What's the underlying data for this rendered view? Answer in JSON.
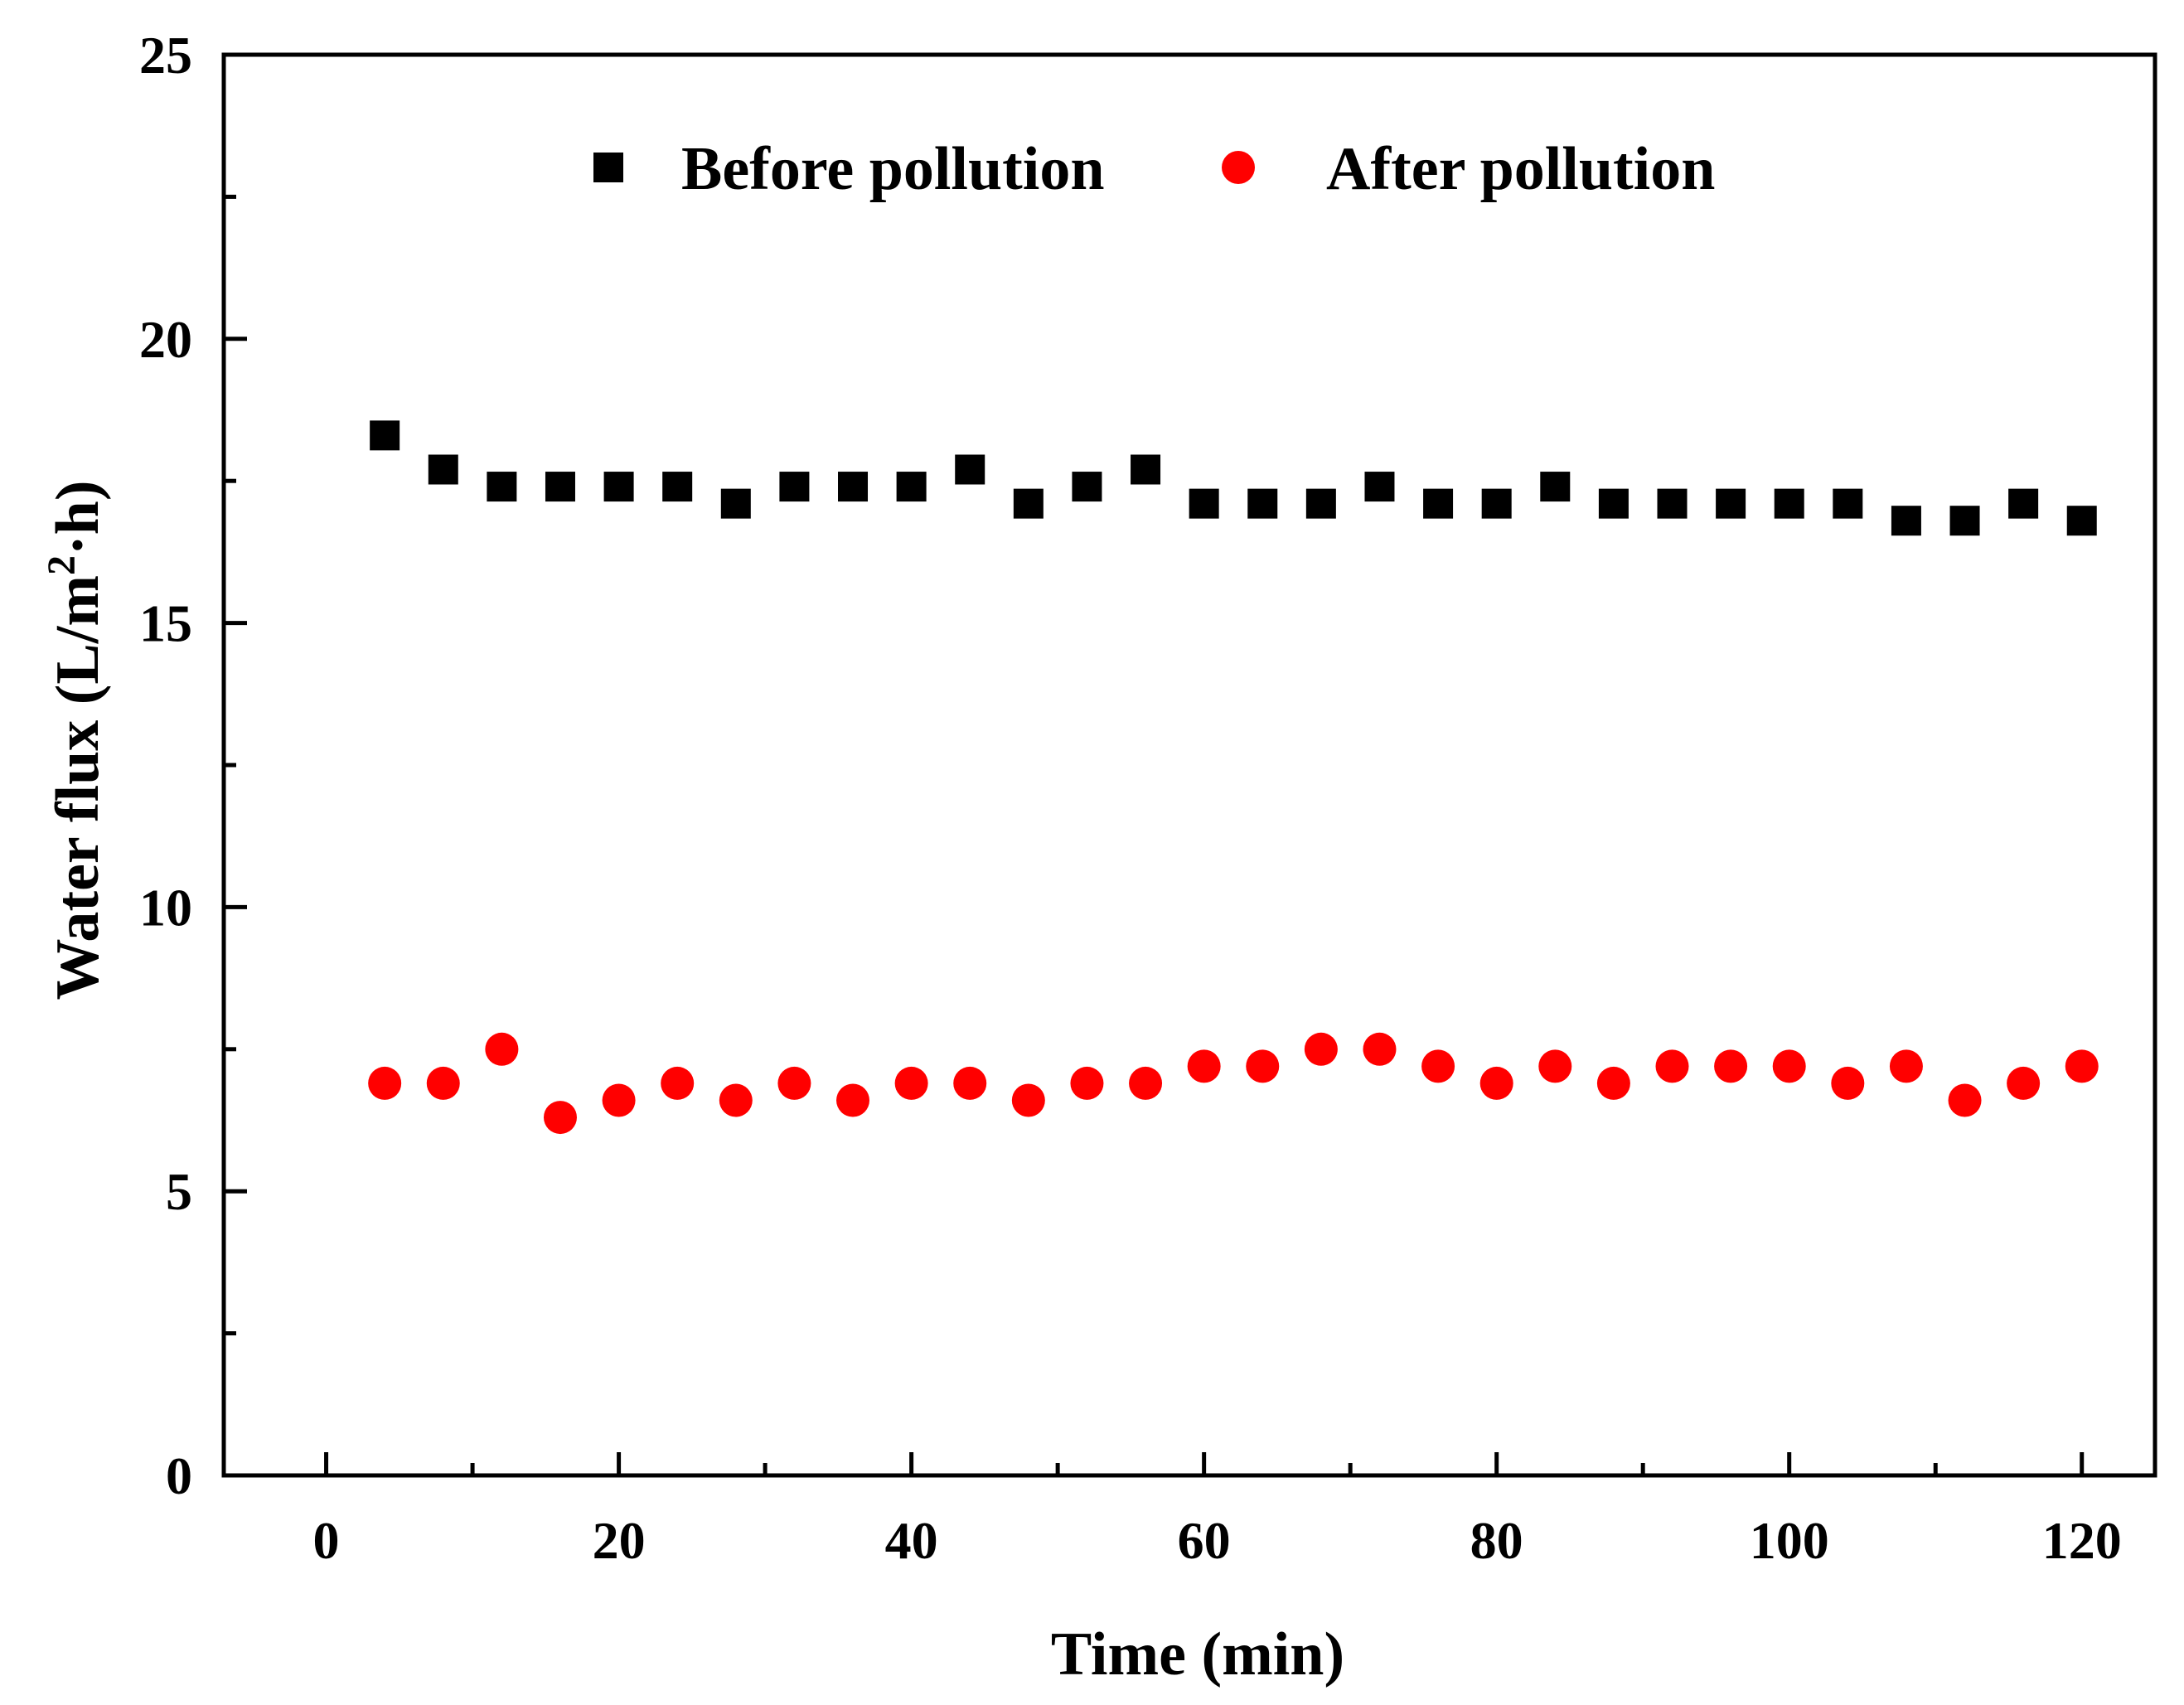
{
  "chart_data": {
    "type": "scatter",
    "xlabel": "Time (min)",
    "ylabel_prefix": "Water flux (L/m",
    "ylabel_sup": "2",
    "ylabel_suffix": "·h)",
    "xlim": [
      -7,
      125
    ],
    "ylim": [
      0,
      25
    ],
    "xticks": [
      0,
      20,
      40,
      60,
      80,
      100,
      120
    ],
    "xticks_minor": [
      10,
      30,
      50,
      70,
      90,
      110
    ],
    "yticks": [
      0,
      5,
      10,
      15,
      20,
      25
    ],
    "yticks_minor": [
      2.5,
      7.5,
      12.5,
      17.5,
      22.5
    ],
    "grid": false,
    "legend_position": "top-center",
    "x": [
      4,
      8,
      12,
      16,
      20,
      24,
      28,
      32,
      36,
      40,
      44,
      48,
      52,
      56,
      60,
      64,
      68,
      72,
      76,
      80,
      84,
      88,
      92,
      96,
      100,
      104,
      108,
      112,
      116,
      120
    ],
    "series": [
      {
        "name": "Before pollution",
        "marker": "square",
        "color": "#000000",
        "values": [
          18.3,
          17.7,
          17.4,
          17.4,
          17.4,
          17.4,
          17.1,
          17.4,
          17.4,
          17.4,
          17.7,
          17.1,
          17.4,
          17.7,
          17.1,
          17.1,
          17.1,
          17.4,
          17.1,
          17.1,
          17.4,
          17.1,
          17.1,
          17.1,
          17.1,
          17.1,
          16.8,
          16.8,
          17.1,
          16.8
        ]
      },
      {
        "name": "After pollution",
        "marker": "circle",
        "color": "#ff0000",
        "values": [
          6.9,
          6.9,
          7.5,
          6.3,
          6.6,
          6.9,
          6.6,
          6.9,
          6.6,
          6.9,
          6.9,
          6.6,
          6.9,
          6.9,
          7.2,
          7.2,
          7.5,
          7.5,
          7.2,
          6.9,
          7.2,
          6.9,
          7.2,
          7.2,
          7.2,
          6.9,
          7.2,
          6.6,
          6.9,
          7.2
        ]
      }
    ]
  }
}
